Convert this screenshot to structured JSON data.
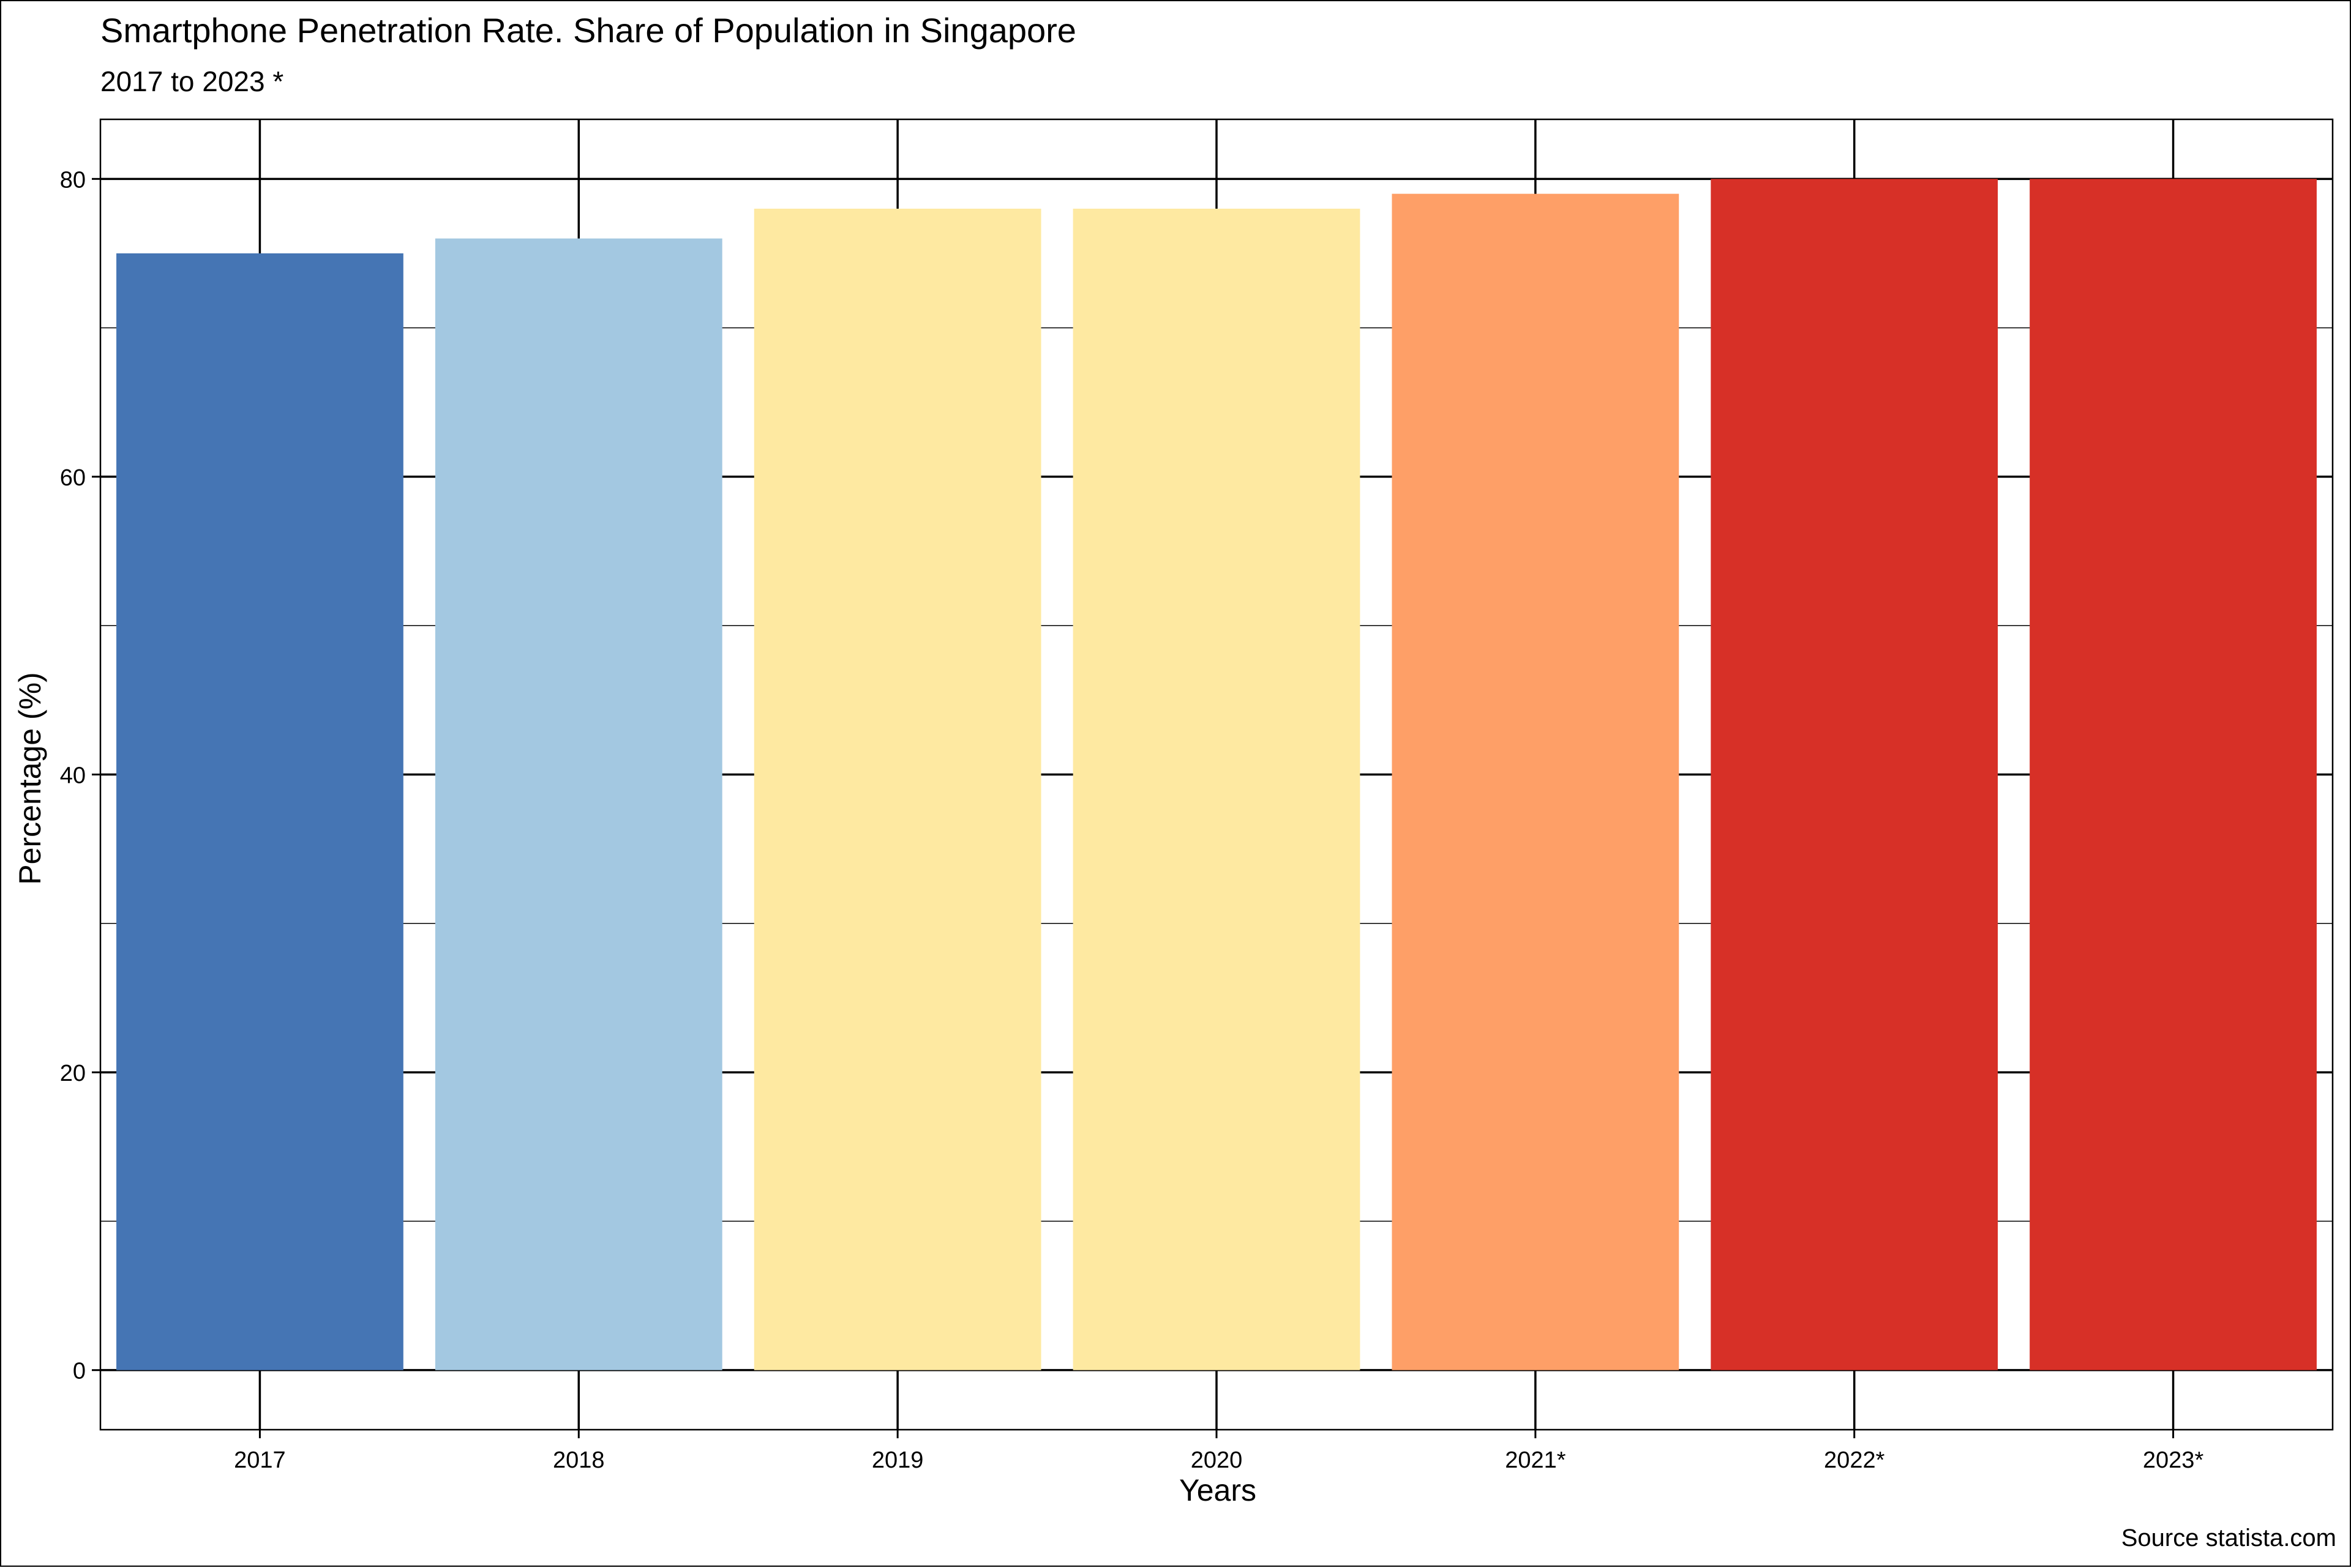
{
  "chart_data": {
    "type": "bar",
    "title": "Smartphone Penetration Rate. Share of Population in Singapore",
    "subtitle": "2017 to 2023 *",
    "xlabel": "Years",
    "ylabel": "Percentage (%)",
    "source": "Source statista.com",
    "categories": [
      "2017",
      "2018",
      "2019",
      "2020",
      "2021*",
      "2022*",
      "2023*"
    ],
    "values": [
      75,
      76,
      78,
      78,
      79,
      80,
      80
    ],
    "colors": [
      "#4575b4",
      "#a3c8e1",
      "#fee9a1",
      "#fee9a1",
      "#fe9f67",
      "#d73027",
      "#d73027"
    ],
    "ylim": [
      -4,
      84
    ],
    "yticks": [
      0,
      20,
      40,
      60,
      80
    ],
    "grid": true,
    "legend": "none"
  }
}
